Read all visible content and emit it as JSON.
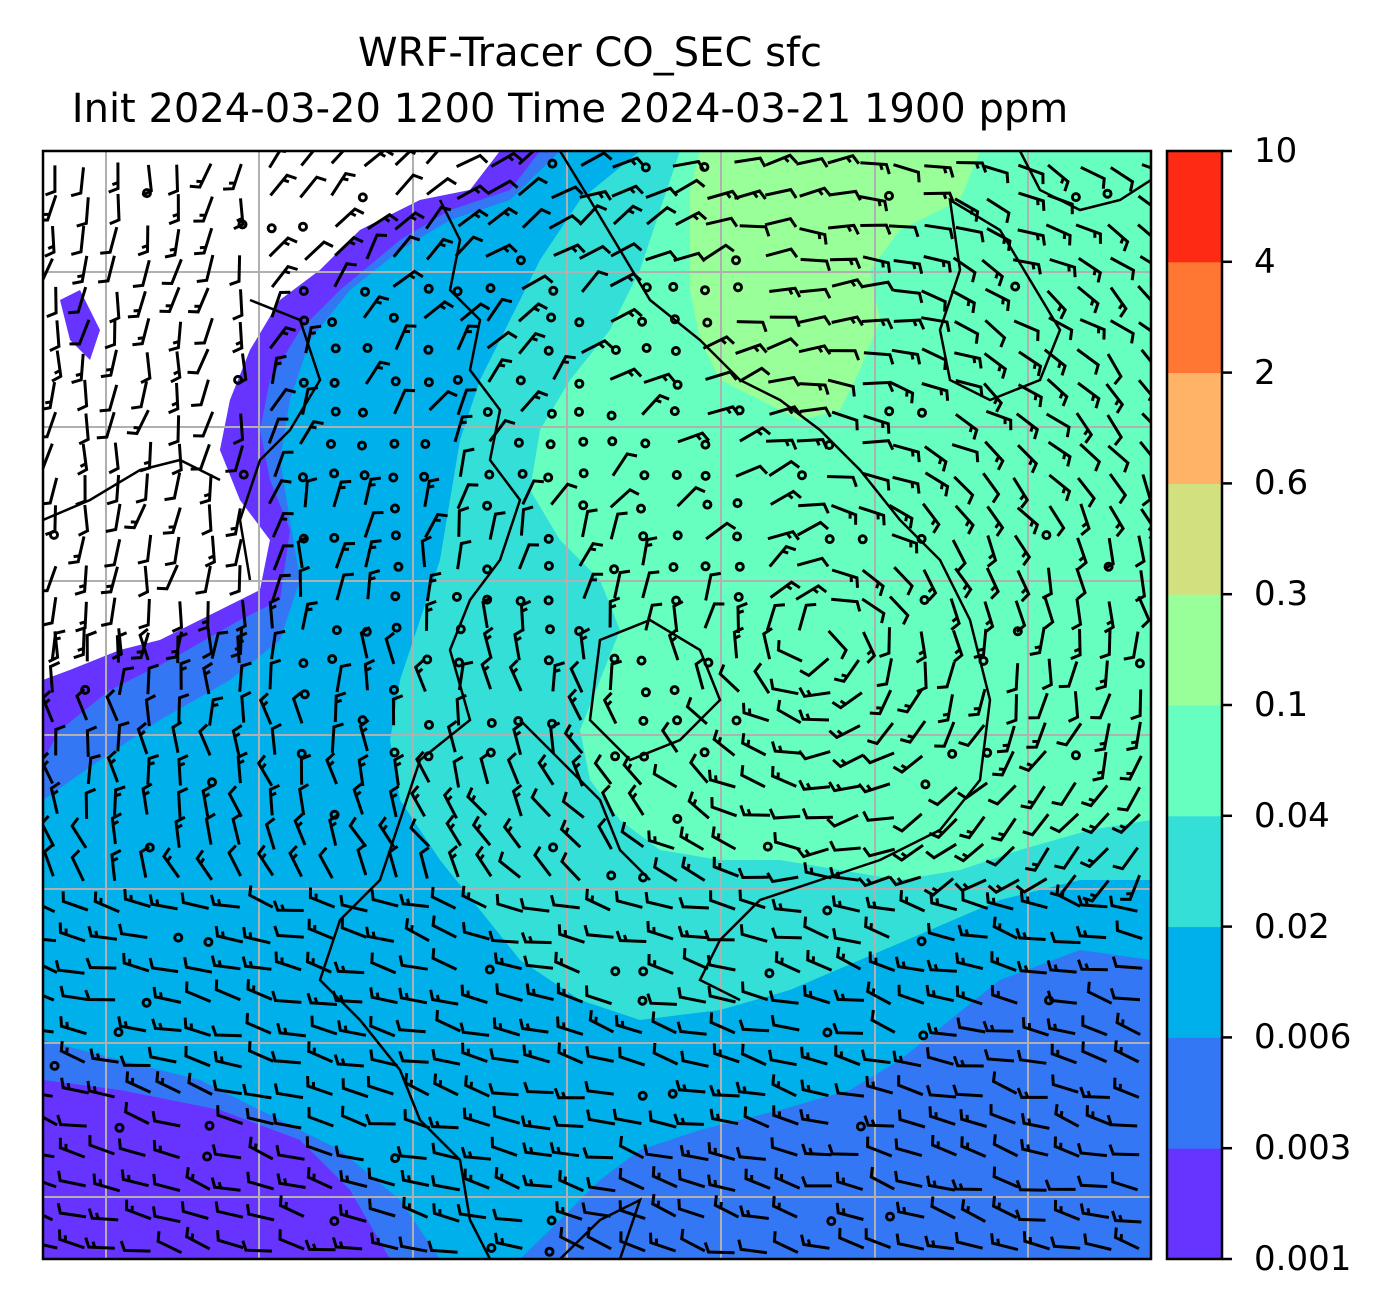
{
  "title": {
    "line1": "WRF-Tracer CO_SEC sfc",
    "line2": "Init 2024-03-20 1200 Time 2024-03-21 1900 ppm"
  },
  "colorbar": {
    "levels": [
      "0.001",
      "0.003",
      "0.006",
      "0.02",
      "0.04",
      "0.1",
      "0.3",
      "0.6",
      "2",
      "4",
      "10"
    ],
    "colors": [
      "#6633ff",
      "#3377f5",
      "#00b0ea",
      "#33dfd6",
      "#66ffc0",
      "#99ff99",
      "#d2e080",
      "#ffb366",
      "#ff7733",
      "#ff2a14"
    ]
  },
  "map": {
    "grid_lines": true,
    "field_colors": {
      "background": "#ffffff",
      "level1": "#6633ff",
      "level2": "#3377f5",
      "level3": "#00b0ea",
      "level4": "#33dfd6",
      "level5": "#66ffc0",
      "level6": "#99ff99"
    },
    "grid_color": "#b0b0b0",
    "barb_color": "#000000"
  }
}
